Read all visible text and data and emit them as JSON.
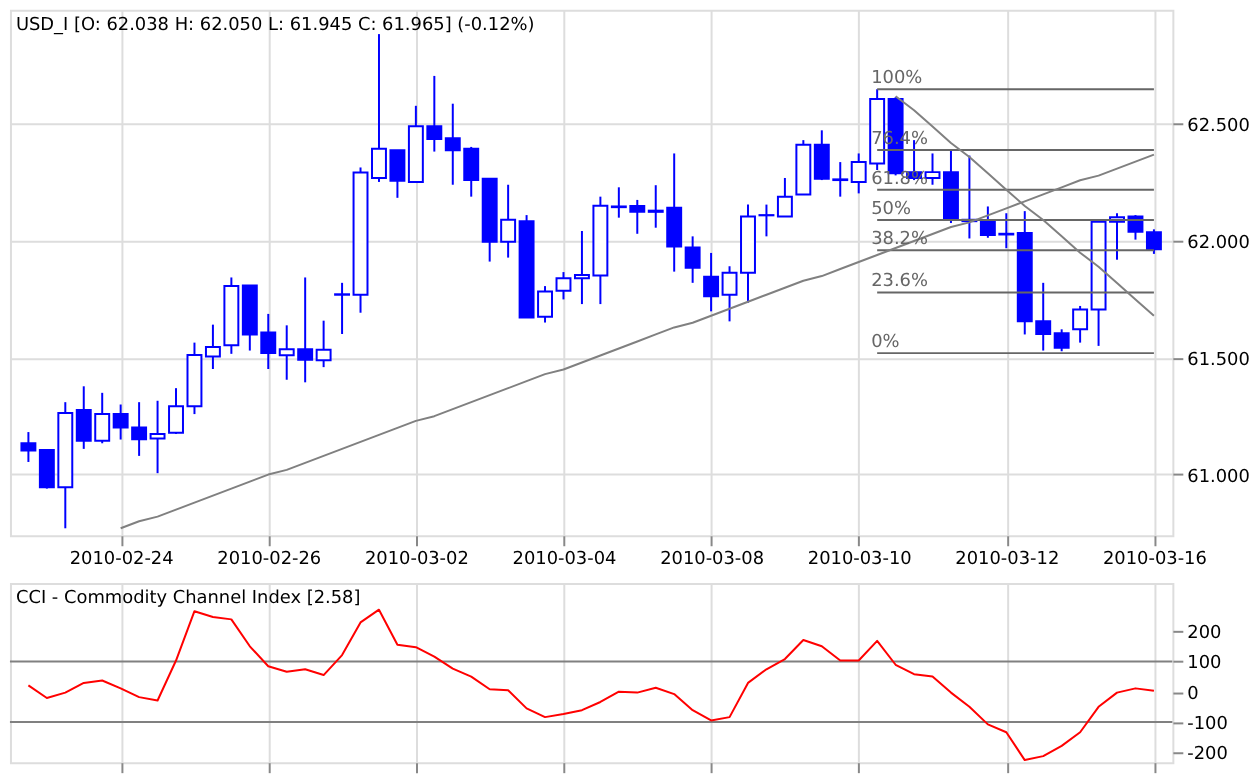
{
  "chart_data": [
    {
      "type": "candlestick",
      "title": "USD_I [O: 62.038  H: 62.050  L: 61.945  C: 61.965] (-0.12%)",
      "color": "#0000ff",
      "categories": [
        null,
        null,
        null,
        null,
        null,
        "2010-02-24",
        null,
        null,
        null,
        null,
        null,
        null,
        null,
        "2010-02-26",
        null,
        null,
        null,
        null,
        null,
        null,
        null,
        "2010-03-02",
        null,
        null,
        null,
        null,
        null,
        null,
        null,
        "2010-03-04",
        null,
        null,
        null,
        null,
        null,
        null,
        null,
        "2010-03-08",
        null,
        null,
        null,
        null,
        null,
        null,
        null,
        "2010-03-10",
        null,
        null,
        null,
        null,
        null,
        null,
        null,
        "2010-03-12",
        null,
        null,
        null,
        null,
        null,
        null,
        null,
        "2010-03-16"
      ],
      "ohlc": [
        [
          61.134,
          61.182,
          61.054,
          61.103
        ],
        [
          61.105,
          61.105,
          60.94,
          60.946
        ],
        [
          60.946,
          61.31,
          60.77,
          61.264
        ],
        [
          61.276,
          61.378,
          61.11,
          61.145
        ],
        [
          61.145,
          61.35,
          61.134,
          61.259
        ],
        [
          61.259,
          61.3,
          61.15,
          61.202
        ],
        [
          61.202,
          61.31,
          61.08,
          61.151
        ],
        [
          61.154,
          61.316,
          61.006,
          61.174
        ],
        [
          61.179,
          61.37,
          61.174,
          61.293
        ],
        [
          61.293,
          61.565,
          61.259,
          61.512
        ],
        [
          61.506,
          61.642,
          61.452,
          61.546
        ],
        [
          61.554,
          61.844,
          61.517,
          61.807
        ],
        [
          61.81,
          61.81,
          61.531,
          61.6
        ],
        [
          61.608,
          61.688,
          61.452,
          61.52
        ],
        [
          61.511,
          61.639,
          61.406,
          61.537
        ],
        [
          61.537,
          61.844,
          61.395,
          61.492
        ],
        [
          61.489,
          61.659,
          61.46,
          61.534
        ],
        [
          61.77,
          61.821,
          61.602,
          61.772
        ],
        [
          61.77,
          62.315,
          61.693,
          62.293
        ],
        [
          62.27,
          62.886,
          62.253,
          62.395
        ],
        [
          62.389,
          62.389,
          62.185,
          62.258
        ],
        [
          62.253,
          62.579,
          62.253,
          62.491
        ],
        [
          62.491,
          62.707,
          62.383,
          62.437
        ],
        [
          62.44,
          62.588,
          62.241,
          62.389
        ],
        [
          62.395,
          62.403,
          62.19,
          62.261
        ],
        [
          62.267,
          62.267,
          61.912,
          61.997
        ],
        [
          61.997,
          62.241,
          61.929,
          62.091
        ],
        [
          62.085,
          62.111,
          61.673,
          61.673
        ],
        [
          61.676,
          61.807,
          61.651,
          61.784
        ],
        [
          61.787,
          61.867,
          61.75,
          61.841
        ],
        [
          61.841,
          62.043,
          61.73,
          61.855
        ],
        [
          61.852,
          62.19,
          61.73,
          62.151
        ],
        [
          62.148,
          62.23,
          62.1,
          62.145
        ],
        [
          62.15,
          62.176,
          62.031,
          62.125
        ],
        [
          62.13,
          62.239,
          62.057,
          62.125
        ],
        [
          62.142,
          62.375,
          61.869,
          61.977
        ],
        [
          61.972,
          62.02,
          61.821,
          61.886
        ],
        [
          61.847,
          61.949,
          61.699,
          61.764
        ],
        [
          61.77,
          61.892,
          61.656,
          61.864
        ],
        [
          61.864,
          62.156,
          61.736,
          62.105
        ],
        [
          62.11,
          62.156,
          62.02,
          62.111
        ],
        [
          62.105,
          62.27,
          62.105,
          62.19
        ],
        [
          62.199,
          62.432,
          62.199,
          62.412
        ],
        [
          62.412,
          62.474,
          62.261,
          62.267
        ],
        [
          62.264,
          62.338,
          62.19,
          62.261
        ],
        [
          62.253,
          62.375,
          62.204,
          62.338
        ],
        [
          62.332,
          62.65,
          62.304,
          62.608
        ],
        [
          62.608,
          62.616,
          62.281,
          62.29
        ],
        [
          62.295,
          62.432,
          62.261,
          62.27
        ],
        [
          62.27,
          62.375,
          62.241,
          62.295
        ],
        [
          62.295,
          62.389,
          62.077,
          62.097
        ],
        [
          62.091,
          62.366,
          62.011,
          62.085
        ],
        [
          62.082,
          62.148,
          62.014,
          62.026
        ],
        [
          62.031,
          62.119,
          61.969,
          62.028
        ],
        [
          62.034,
          62.128,
          61.6,
          61.656
        ],
        [
          61.656,
          61.821,
          61.531,
          61.602
        ],
        [
          61.605,
          61.622,
          61.528,
          61.543
        ],
        [
          61.622,
          61.722,
          61.565,
          61.707
        ],
        [
          61.707,
          62.082,
          61.551,
          62.082
        ],
        [
          62.082,
          62.119,
          61.92,
          62.102
        ],
        [
          62.105,
          62.111,
          62.006,
          62.04
        ],
        [
          62.038,
          62.05,
          61.945,
          61.965
        ]
      ],
      "series": [
        {
          "type": "line",
          "name": "100%",
          "color": "#666666",
          "values": [
            null,
            null,
            null,
            null,
            null,
            null,
            null,
            null,
            null,
            null,
            null,
            null,
            null,
            null,
            null,
            null,
            null,
            null,
            null,
            null,
            null,
            null,
            null,
            null,
            null,
            null,
            null,
            null,
            null,
            null,
            null,
            null,
            null,
            null,
            null,
            null,
            null,
            null,
            null,
            null,
            null,
            null,
            null,
            null,
            null,
            null,
            62.65,
            62.65,
            62.65,
            62.65,
            62.65,
            62.65,
            62.65,
            62.65,
            62.65,
            62.65,
            62.65,
            62.65,
            62.65,
            62.65,
            62.65,
            62.65
          ]
        },
        {
          "type": "line",
          "name": "76.4%",
          "color": "#666666",
          "values": [
            null,
            null,
            null,
            null,
            null,
            null,
            null,
            null,
            null,
            null,
            null,
            null,
            null,
            null,
            null,
            null,
            null,
            null,
            null,
            null,
            null,
            null,
            null,
            null,
            null,
            null,
            null,
            null,
            null,
            null,
            null,
            null,
            null,
            null,
            null,
            null,
            null,
            null,
            null,
            null,
            null,
            null,
            null,
            null,
            null,
            null,
            62.39,
            62.39,
            62.39,
            62.39,
            62.39,
            62.39,
            62.39,
            62.39,
            62.39,
            62.39,
            62.39,
            62.39,
            62.39,
            62.39,
            62.39,
            62.39
          ]
        },
        {
          "type": "line",
          "name": "61.8%",
          "color": "#666666",
          "values": [
            null,
            null,
            null,
            null,
            null,
            null,
            null,
            null,
            null,
            null,
            null,
            null,
            null,
            null,
            null,
            null,
            null,
            null,
            null,
            null,
            null,
            null,
            null,
            null,
            null,
            null,
            null,
            null,
            null,
            null,
            null,
            null,
            null,
            null,
            null,
            null,
            null,
            null,
            null,
            null,
            null,
            null,
            null,
            null,
            null,
            null,
            62.22,
            62.22,
            62.22,
            62.22,
            62.22,
            62.22,
            62.22,
            62.22,
            62.22,
            62.22,
            62.22,
            62.22,
            62.22,
            62.22,
            62.22,
            62.22
          ]
        },
        {
          "type": "line",
          "name": "50%",
          "color": "#666666",
          "values": [
            null,
            null,
            null,
            null,
            null,
            null,
            null,
            null,
            null,
            null,
            null,
            null,
            null,
            null,
            null,
            null,
            null,
            null,
            null,
            null,
            null,
            null,
            null,
            null,
            null,
            null,
            null,
            null,
            null,
            null,
            null,
            null,
            null,
            null,
            null,
            null,
            null,
            null,
            null,
            null,
            null,
            null,
            null,
            null,
            null,
            null,
            62.09,
            62.09,
            62.09,
            62.09,
            62.09,
            62.09,
            62.09,
            62.09,
            62.09,
            62.09,
            62.09,
            62.09,
            62.09,
            62.09,
            62.09,
            62.09
          ]
        },
        {
          "type": "line",
          "name": "38.2%",
          "color": "#666666",
          "values": [
            null,
            null,
            null,
            null,
            null,
            null,
            null,
            null,
            null,
            null,
            null,
            null,
            null,
            null,
            null,
            null,
            null,
            null,
            null,
            null,
            null,
            null,
            null,
            null,
            null,
            null,
            null,
            null,
            null,
            null,
            null,
            null,
            null,
            null,
            null,
            null,
            null,
            null,
            null,
            null,
            null,
            null,
            null,
            null,
            null,
            null,
            61.96,
            61.96,
            61.96,
            61.96,
            61.96,
            61.96,
            61.96,
            61.96,
            61.96,
            61.96,
            61.96,
            61.96,
            61.96,
            61.96,
            61.96,
            61.96
          ]
        },
        {
          "type": "line",
          "name": "23.6%",
          "color": "#666666",
          "values": [
            null,
            null,
            null,
            null,
            null,
            null,
            null,
            null,
            null,
            null,
            null,
            null,
            null,
            null,
            null,
            null,
            null,
            null,
            null,
            null,
            null,
            null,
            null,
            null,
            null,
            null,
            null,
            null,
            null,
            null,
            null,
            null,
            null,
            null,
            null,
            null,
            null,
            null,
            null,
            null,
            null,
            null,
            null,
            null,
            null,
            null,
            61.78,
            61.78,
            61.78,
            61.78,
            61.78,
            61.78,
            61.78,
            61.78,
            61.78,
            61.78,
            61.78,
            61.78,
            61.78,
            61.78,
            61.78,
            61.78
          ]
        },
        {
          "type": "line",
          "name": "0%",
          "color": "#666666",
          "values": [
            null,
            null,
            null,
            null,
            null,
            null,
            null,
            null,
            null,
            null,
            null,
            null,
            null,
            null,
            null,
            null,
            null,
            null,
            null,
            null,
            null,
            null,
            null,
            null,
            null,
            null,
            null,
            null,
            null,
            null,
            null,
            null,
            null,
            null,
            null,
            null,
            null,
            null,
            null,
            null,
            null,
            null,
            null,
            null,
            null,
            null,
            61.52,
            61.52,
            61.52,
            61.52,
            61.52,
            61.52,
            61.52,
            61.52,
            61.52,
            61.52,
            61.52,
            61.52,
            61.52,
            61.52,
            61.52,
            61.52
          ]
        },
        {
          "type": "line",
          "color": "#808080",
          "values": [
            null,
            null,
            null,
            null,
            null,
            60.77,
            60.8,
            60.82,
            60.85,
            60.88,
            60.91,
            60.94,
            60.97,
            61.0,
            61.02,
            61.05,
            61.08,
            61.11,
            61.14,
            61.17,
            61.2,
            61.23,
            61.25,
            61.28,
            61.31,
            61.34,
            61.37,
            61.4,
            61.43,
            61.45,
            61.48,
            61.51,
            61.54,
            61.57,
            61.6,
            61.63,
            61.65,
            61.68,
            61.71,
            61.74,
            61.77,
            61.8,
            61.83,
            61.85,
            61.88,
            61.91,
            61.94,
            61.97,
            62.0,
            62.03,
            62.06,
            62.08,
            62.11,
            62.14,
            62.17,
            62.2,
            62.23,
            62.26,
            62.28,
            62.31,
            62.34,
            62.37
          ]
        },
        {
          "type": "line",
          "color": "#808080",
          "values": [
            null,
            null,
            null,
            null,
            null,
            null,
            null,
            null,
            null,
            null,
            null,
            null,
            null,
            null,
            null,
            null,
            null,
            null,
            null,
            null,
            null,
            null,
            null,
            null,
            null,
            null,
            null,
            null,
            null,
            null,
            null,
            null,
            null,
            null,
            null,
            null,
            null,
            null,
            null,
            null,
            null,
            null,
            null,
            null,
            null,
            null,
            null,
            62.62,
            62.56,
            62.49,
            62.42,
            62.36,
            62.29,
            62.22,
            62.15,
            62.09,
            62.02,
            61.95,
            61.89,
            61.82,
            61.75,
            61.68
          ]
        }
      ],
      "ylim": [
        60.74,
        62.99
      ],
      "yticks": [
        {
          "value": 61,
          "label": "61.000"
        },
        {
          "value": 61.5,
          "label": "61.500"
        },
        {
          "value": 62,
          "label": "62.000"
        },
        {
          "value": 62.5,
          "label": "62.500"
        }
      ],
      "grid": true
    },
    {
      "type": "line",
      "title": "CCI - Commodity Channel Index [2.58]",
      "categories": [
        null,
        null,
        null,
        null,
        null,
        "2010-02-24",
        null,
        null,
        null,
        null,
        null,
        null,
        null,
        "2010-02-26",
        null,
        null,
        null,
        null,
        null,
        null,
        null,
        "2010-03-02",
        null,
        null,
        null,
        null,
        null,
        null,
        null,
        "2010-03-04",
        null,
        null,
        null,
        null,
        null,
        null,
        null,
        "2010-03-08",
        null,
        null,
        null,
        null,
        null,
        null,
        null,
        "2010-03-10",
        null,
        null,
        null,
        null,
        null,
        null,
        null,
        "2010-03-12",
        null,
        null,
        null,
        null,
        null,
        null,
        null,
        "2010-03-16"
      ],
      "series": [
        {
          "color": "#ff0000",
          "values": [
            21,
            -21,
            -3,
            29,
            37,
            11,
            -18,
            -29,
            103,
            266,
            247,
            239,
            150,
            84,
            66,
            74,
            55,
            121,
            229,
            271,
            155,
            147,
            116,
            76,
            50,
            8,
            5,
            -55,
            -84,
            -74,
            -61,
            -34,
            0,
            -3,
            13,
            -8,
            -61,
            -95,
            -84,
            29,
            74,
            108,
            171,
            150,
            103,
            103,
            168,
            89,
            58,
            50,
            -3,
            -50,
            -108,
            -134,
            -226,
            -213,
            -179,
            -134,
            -50,
            -3,
            11,
            3
          ]
        }
      ],
      "ylim": [
        -233,
        359
      ],
      "yticks": [
        -200,
        -100,
        0,
        100,
        200
      ],
      "ref_lines": [
        {
          "axis": "y",
          "value": 100,
          "color": "#808080"
        },
        {
          "axis": "y",
          "value": -100,
          "color": "#808080"
        }
      ],
      "grid": "x",
      "tick_labels": "y"
    }
  ]
}
